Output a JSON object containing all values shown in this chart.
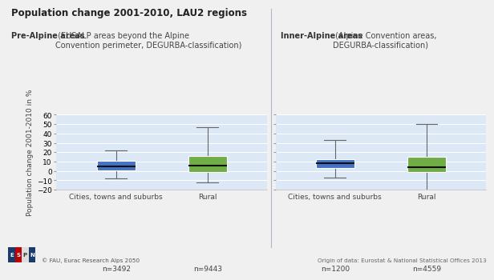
{
  "title": "Population change 2001-2010, LAU2 regions",
  "left_subtitle_bold": "Pre-Alpine areas",
  "left_subtitle_rest": " (EUSALP areas beyond the Alpine\nConvention perimeter, DEGURBA-classification)",
  "right_subtitle_bold": "Inner-Alpine areas",
  "right_subtitle_rest": " (Alpine Convention areas,\nDEGURBA-classification)",
  "ylabel": "Population change 2001-2010 in %",
  "ylim": [
    -20,
    60
  ],
  "yticks": [
    -20,
    -10,
    0,
    10,
    20,
    30,
    40,
    50,
    60
  ],
  "plot_bg": "#dce8f5",
  "figure_bg": "#f0f0f0",
  "footer_left": "© FAU, Eurac Research Alps 2050",
  "footer_right": "Origin of data: Eurostat & National Statistical Offices 2013",
  "boxes": {
    "pre_urban": {
      "whislo": -8,
      "q1": 1,
      "med": 5,
      "q3": 11,
      "whishi": 22,
      "color": "#4472c4",
      "label": "Cities, towns and suburbs",
      "n": "n=3492"
    },
    "pre_rural": {
      "whislo": -12,
      "q1": -1,
      "med": 6,
      "q3": 16,
      "whishi": 47,
      "color": "#70ad47",
      "label": "Rural",
      "n": "n=9443"
    },
    "inner_urban": {
      "whislo": -7,
      "q1": 3,
      "med": 8,
      "q3": 13,
      "whishi": 33,
      "color": "#4472c4",
      "label": "Cities, towns and suburbs",
      "n": "n=1200"
    },
    "inner_rural": {
      "whislo": -22,
      "q1": -1,
      "med": 4,
      "q3": 15,
      "whishi": 50,
      "color": "#70ad47",
      "label": "Rural",
      "n": "n=4559"
    }
  },
  "box_width": 0.42,
  "median_color": "#111111",
  "whisker_color": "#666666",
  "cap_color": "#666666",
  "divider_color": "#b0b8cc",
  "title_fontsize": 8.5,
  "subtitle_fontsize": 7.0,
  "tick_fontsize": 6.5,
  "label_fontsize": 6.5,
  "footer_fontsize": 5.2
}
